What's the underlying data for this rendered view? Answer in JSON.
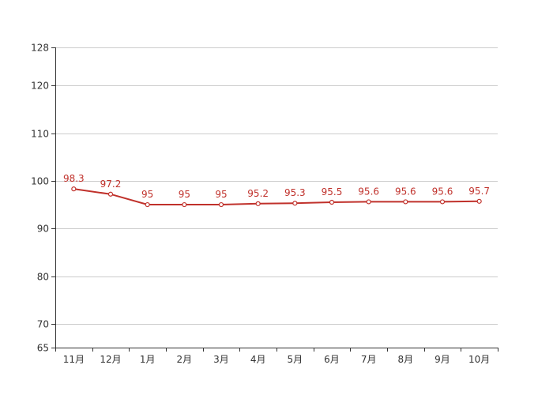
{
  "chart_data": {
    "type": "line",
    "categories": [
      "11月",
      "12月",
      "1月",
      "2月",
      "3月",
      "4月",
      "5月",
      "6月",
      "7月",
      "8月",
      "9月",
      "10月"
    ],
    "series": [
      {
        "values": [
          98.3,
          97.2,
          95,
          95,
          95,
          95.2,
          95.3,
          95.5,
          95.6,
          95.6,
          95.6,
          95.7
        ],
        "labels": [
          "98.3",
          "97.2",
          "95",
          "95",
          "95",
          "95.2",
          "95.3",
          "95.5",
          "95.6",
          "95.6",
          "95.6",
          "95.7"
        ],
        "color": "#c0312b"
      }
    ],
    "yticks": [
      65,
      70,
      80,
      90,
      100,
      110,
      120,
      128
    ],
    "ylim": [
      65,
      128
    ],
    "grid": true,
    "gridColor": "#cccccc",
    "axisColor": "#333333"
  }
}
